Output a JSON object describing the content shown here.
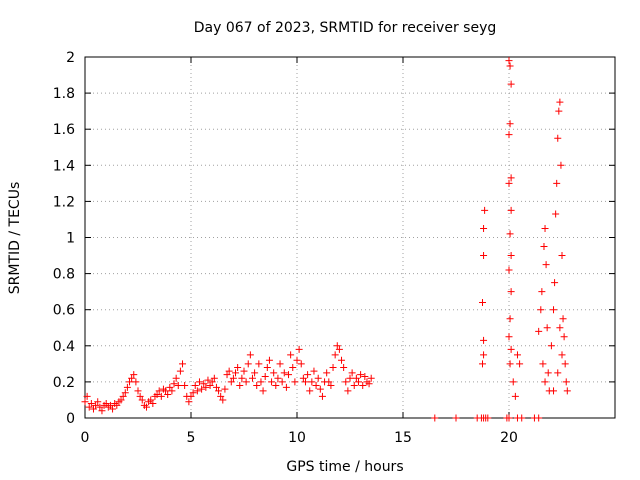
{
  "chart_data": {
    "type": "scatter",
    "title": "Day 067 of 2023, SRMTID for receiver seyg",
    "xlabel": "GPS time / hours",
    "ylabel": "SRMTID / TECUs",
    "xlim": [
      0,
      25
    ],
    "ylim": [
      0,
      2
    ],
    "xticks": [
      0,
      5,
      10,
      15,
      20
    ],
    "yticks": [
      0,
      0.2,
      0.4,
      0.6,
      0.8,
      1,
      1.2,
      1.4,
      1.6,
      1.8,
      2
    ],
    "xtick_labels": [
      "0",
      "5",
      "10",
      "15",
      "20"
    ],
    "ytick_labels": [
      "0",
      "0.2",
      "0.4",
      "0.6",
      "0.8",
      "1",
      "1.2",
      "1.4",
      "1.6",
      "1.8",
      "2"
    ],
    "grid": true,
    "marker": "+",
    "color": "#ff0000",
    "series": [
      {
        "name": "SRMTID",
        "points": [
          [
            0.0,
            0.09
          ],
          [
            0.1,
            0.12
          ],
          [
            0.2,
            0.06
          ],
          [
            0.3,
            0.08
          ],
          [
            0.4,
            0.05
          ],
          [
            0.5,
            0.07
          ],
          [
            0.6,
            0.09
          ],
          [
            0.7,
            0.06
          ],
          [
            0.8,
            0.04
          ],
          [
            0.9,
            0.07
          ],
          [
            1.0,
            0.08
          ],
          [
            1.1,
            0.06
          ],
          [
            1.2,
            0.07
          ],
          [
            1.3,
            0.05
          ],
          [
            1.4,
            0.08
          ],
          [
            1.5,
            0.07
          ],
          [
            1.6,
            0.09
          ],
          [
            1.7,
            0.1
          ],
          [
            1.8,
            0.12
          ],
          [
            1.9,
            0.14
          ],
          [
            2.0,
            0.17
          ],
          [
            2.1,
            0.2
          ],
          [
            2.2,
            0.22
          ],
          [
            2.3,
            0.24
          ],
          [
            2.4,
            0.2
          ],
          [
            2.5,
            0.15
          ],
          [
            2.6,
            0.12
          ],
          [
            2.7,
            0.1
          ],
          [
            2.8,
            0.07
          ],
          [
            2.9,
            0.06
          ],
          [
            3.0,
            0.09
          ],
          [
            3.1,
            0.1
          ],
          [
            3.2,
            0.08
          ],
          [
            3.3,
            0.12
          ],
          [
            3.4,
            0.13
          ],
          [
            3.5,
            0.15
          ],
          [
            3.6,
            0.12
          ],
          [
            3.7,
            0.16
          ],
          [
            3.8,
            0.15
          ],
          [
            3.9,
            0.13
          ],
          [
            4.0,
            0.17
          ],
          [
            4.1,
            0.15
          ],
          [
            4.2,
            0.19
          ],
          [
            4.3,
            0.22
          ],
          [
            4.4,
            0.18
          ],
          [
            4.5,
            0.26
          ],
          [
            4.6,
            0.3
          ],
          [
            4.7,
            0.18
          ],
          [
            4.8,
            0.12
          ],
          [
            4.9,
            0.09
          ],
          [
            5.0,
            0.12
          ],
          [
            5.1,
            0.14
          ],
          [
            5.2,
            0.18
          ],
          [
            5.3,
            0.15
          ],
          [
            5.4,
            0.2
          ],
          [
            5.5,
            0.16
          ],
          [
            5.6,
            0.19
          ],
          [
            5.7,
            0.17
          ],
          [
            5.8,
            0.21
          ],
          [
            5.9,
            0.18
          ],
          [
            6.0,
            0.2
          ],
          [
            6.1,
            0.22
          ],
          [
            6.2,
            0.17
          ],
          [
            6.3,
            0.15
          ],
          [
            6.4,
            0.12
          ],
          [
            6.5,
            0.1
          ],
          [
            6.6,
            0.16
          ],
          [
            6.7,
            0.24
          ],
          [
            6.8,
            0.26
          ],
          [
            6.9,
            0.2
          ],
          [
            7.0,
            0.22
          ],
          [
            7.1,
            0.25
          ],
          [
            7.2,
            0.28
          ],
          [
            7.3,
            0.18
          ],
          [
            7.4,
            0.22
          ],
          [
            7.5,
            0.26
          ],
          [
            7.6,
            0.2
          ],
          [
            7.7,
            0.3
          ],
          [
            7.8,
            0.35
          ],
          [
            7.9,
            0.22
          ],
          [
            8.0,
            0.25
          ],
          [
            8.1,
            0.18
          ],
          [
            8.2,
            0.3
          ],
          [
            8.3,
            0.2
          ],
          [
            8.4,
            0.15
          ],
          [
            8.5,
            0.23
          ],
          [
            8.6,
            0.28
          ],
          [
            8.7,
            0.32
          ],
          [
            8.8,
            0.2
          ],
          [
            8.9,
            0.25
          ],
          [
            9.0,
            0.18
          ],
          [
            9.1,
            0.22
          ],
          [
            9.2,
            0.3
          ],
          [
            9.3,
            0.2
          ],
          [
            9.4,
            0.25
          ],
          [
            9.5,
            0.17
          ],
          [
            9.6,
            0.24
          ],
          [
            9.7,
            0.35
          ],
          [
            9.8,
            0.28
          ],
          [
            9.9,
            0.2
          ],
          [
            10.0,
            0.32
          ],
          [
            10.1,
            0.38
          ],
          [
            10.2,
            0.3
          ],
          [
            10.3,
            0.22
          ],
          [
            10.4,
            0.2
          ],
          [
            10.5,
            0.24
          ],
          [
            10.6,
            0.15
          ],
          [
            10.7,
            0.2
          ],
          [
            10.8,
            0.26
          ],
          [
            10.9,
            0.18
          ],
          [
            11.0,
            0.22
          ],
          [
            11.1,
            0.16
          ],
          [
            11.2,
            0.12
          ],
          [
            11.3,
            0.2
          ],
          [
            11.4,
            0.25
          ],
          [
            11.5,
            0.2
          ],
          [
            11.6,
            0.18
          ],
          [
            11.7,
            0.28
          ],
          [
            11.8,
            0.35
          ],
          [
            11.9,
            0.4
          ],
          [
            12.0,
            0.38
          ],
          [
            12.1,
            0.32
          ],
          [
            12.2,
            0.28
          ],
          [
            12.3,
            0.2
          ],
          [
            12.4,
            0.15
          ],
          [
            12.5,
            0.22
          ],
          [
            12.6,
            0.25
          ],
          [
            12.7,
            0.18
          ],
          [
            12.8,
            0.22
          ],
          [
            12.9,
            0.2
          ],
          [
            13.0,
            0.24
          ],
          [
            13.1,
            0.18
          ],
          [
            13.2,
            0.23
          ],
          [
            13.3,
            0.2
          ],
          [
            13.4,
            0.19
          ],
          [
            13.5,
            0.22
          ],
          [
            16.5,
            0.0
          ],
          [
            17.5,
            0.0
          ],
          [
            18.5,
            0.0
          ],
          [
            18.7,
            0.0
          ],
          [
            18.8,
            0.0
          ],
          [
            18.9,
            0.0
          ],
          [
            19.0,
            0.0
          ],
          [
            18.8,
            0.9
          ],
          [
            18.85,
            1.15
          ],
          [
            18.8,
            1.05
          ],
          [
            18.75,
            0.64
          ],
          [
            18.8,
            0.43
          ],
          [
            18.75,
            0.3
          ],
          [
            18.8,
            0.35
          ],
          [
            20.0,
            1.98
          ],
          [
            20.05,
            1.95
          ],
          [
            20.1,
            1.85
          ],
          [
            20.05,
            1.63
          ],
          [
            20.0,
            1.57
          ],
          [
            20.1,
            1.33
          ],
          [
            20.0,
            1.3
          ],
          [
            20.1,
            1.15
          ],
          [
            20.05,
            1.02
          ],
          [
            20.1,
            0.9
          ],
          [
            20.0,
            0.82
          ],
          [
            20.1,
            0.7
          ],
          [
            20.05,
            0.55
          ],
          [
            20.0,
            0.45
          ],
          [
            20.1,
            0.38
          ],
          [
            20.05,
            0.3
          ],
          [
            20.2,
            0.2
          ],
          [
            20.3,
            0.12
          ],
          [
            20.4,
            0.35
          ],
          [
            20.5,
            0.3
          ],
          [
            19.9,
            0.0
          ],
          [
            20.0,
            0.0
          ],
          [
            20.4,
            0.0
          ],
          [
            20.6,
            0.0
          ],
          [
            21.2,
            0.0
          ],
          [
            21.4,
            0.0
          ],
          [
            21.4,
            0.48
          ],
          [
            21.5,
            0.6
          ],
          [
            21.55,
            0.7
          ],
          [
            21.6,
            0.3
          ],
          [
            21.65,
            0.95
          ],
          [
            21.7,
            1.05
          ],
          [
            21.75,
            0.85
          ],
          [
            21.8,
            0.5
          ],
          [
            21.85,
            0.25
          ],
          [
            21.9,
            0.15
          ],
          [
            22.0,
            0.4
          ],
          [
            22.1,
            0.6
          ],
          [
            22.15,
            0.75
          ],
          [
            22.2,
            1.13
          ],
          [
            22.25,
            1.3
          ],
          [
            22.3,
            1.55
          ],
          [
            22.35,
            1.7
          ],
          [
            22.4,
            1.75
          ],
          [
            22.45,
            1.4
          ],
          [
            22.5,
            0.9
          ],
          [
            22.55,
            0.55
          ],
          [
            22.6,
            0.45
          ],
          [
            22.65,
            0.3
          ],
          [
            22.7,
            0.2
          ],
          [
            22.75,
            0.15
          ],
          [
            22.3,
            0.25
          ],
          [
            22.4,
            0.5
          ],
          [
            22.5,
            0.35
          ],
          [
            21.7,
            0.2
          ],
          [
            22.1,
            0.15
          ]
        ]
      }
    ]
  }
}
